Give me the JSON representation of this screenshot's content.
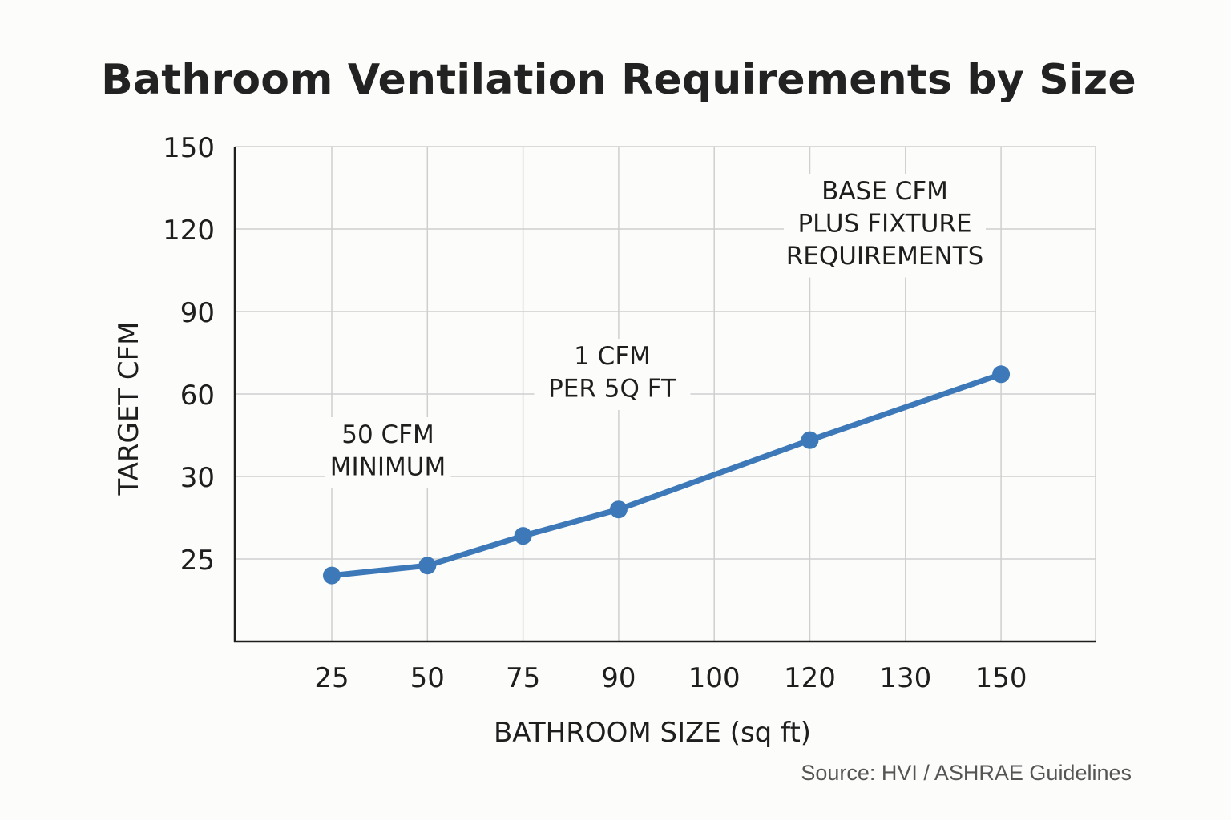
{
  "chart_data": {
    "type": "line",
    "title": "Bathroom Ventilation Requirements by Size",
    "xlabel": "BATHROOM SIZE (sq ft)",
    "ylabel": "TARGET CFM",
    "categories": [
      "25",
      "50",
      "75",
      "90",
      "100",
      "120",
      "130",
      "150"
    ],
    "y_ticks": [
      "150",
      "120",
      "90",
      "60",
      "30",
      "25"
    ],
    "ylim": [
      0,
      150
    ],
    "grid": true,
    "legend": "none",
    "series": [
      {
        "x": [
          "25",
          "50",
          "75",
          "90",
          "120",
          "150"
        ],
        "values": [
          20,
          23,
          32,
          40,
          61,
          81
        ],
        "color": "#3d79b8"
      }
    ],
    "annotations": [
      {
        "lines": [
          "50 CFM",
          "MINIMUM"
        ],
        "near": "50"
      },
      {
        "lines": [
          "1 CFM",
          "PER 5Q FT"
        ],
        "near": "90"
      },
      {
        "lines": [
          "BASE CFM",
          "PLUS FIXTURE",
          "REQUIREMENTS"
        ],
        "near": "150"
      }
    ],
    "source": "Source: HVI / ASHRAE Guidelines"
  }
}
